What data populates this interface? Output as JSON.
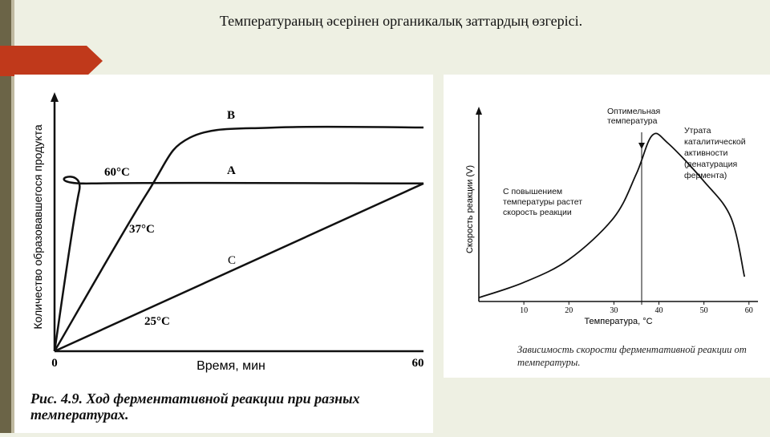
{
  "slide": {
    "title": "Температураның әсерінен органикалық заттардың өзгерісі."
  },
  "colors": {
    "accent_ribbon": "#c0391b",
    "sidebar": "#6b6447",
    "ink": "#111111"
  },
  "chart_data": [
    {
      "type": "line",
      "xlabel": "Время, мин",
      "ylabel": "Количество образовавшегося продукта",
      "x_tick_labels": [
        "0",
        "60"
      ],
      "xlim": [
        0,
        60
      ],
      "caption": "Рис. 4.9. Ход ферментативной реакции при разных температурах.",
      "series": [
        {
          "name": "60°C",
          "label": "A",
          "points": [
            [
              0,
              0
            ],
            [
              4,
              0.63
            ],
            [
              6,
              0.66
            ],
            [
              60,
              0.66
            ]
          ]
        },
        {
          "name": "37°C",
          "label": "B",
          "points": [
            [
              0,
              0
            ],
            [
              15,
              0.62
            ],
            [
              22,
              0.84
            ],
            [
              36,
              0.88
            ],
            [
              60,
              0.88
            ]
          ]
        },
        {
          "name": "25°C",
          "label": "C",
          "points": [
            [
              0,
              0
            ],
            [
              60,
              0.66
            ]
          ]
        }
      ]
    },
    {
      "type": "line",
      "xlabel": "Температура, °С",
      "ylabel": "Скорость реакции (V)",
      "x_ticks": [
        10,
        20,
        30,
        40,
        50,
        60
      ],
      "xlim": [
        0,
        62
      ],
      "caption": "Зависимость скорости ферментативной реакции от температуры.",
      "annotations": {
        "peak": "Оптимельная температура",
        "right": "Утрата каталитической активности (денатурация фермента)",
        "left": "С повышением температуры растет скорость реакции"
      },
      "series": [
        {
          "name": "",
          "points": [
            [
              0,
              0.02
            ],
            [
              10,
              0.1
            ],
            [
              20,
              0.22
            ],
            [
              30,
              0.44
            ],
            [
              35,
              0.67
            ],
            [
              38.5,
              0.87
            ],
            [
              42,
              0.83
            ],
            [
              50,
              0.63
            ],
            [
              56,
              0.44
            ],
            [
              59,
              0.13
            ]
          ]
        }
      ]
    }
  ]
}
